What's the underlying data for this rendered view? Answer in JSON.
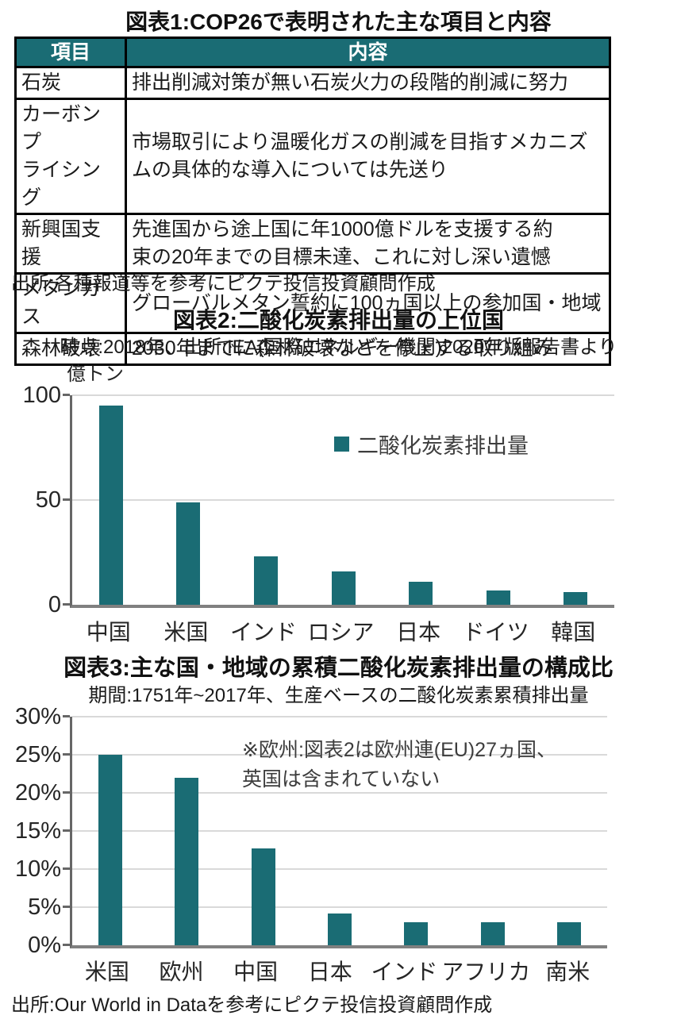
{
  "colors": {
    "teal": "#1a6c74",
    "grid": "#d9d9d9",
    "axis": "#808080",
    "y_axis": "#666666",
    "text": "#1a1a1a",
    "table_header_text": "#ffffff",
    "table_border": "#000000"
  },
  "fig1": {
    "title": "図表1:COP26で表明された主な項目と内容",
    "col_headers": {
      "item": "項目",
      "content": "内容"
    },
    "rows": [
      {
        "item": "石炭",
        "content": "排出削減対策が無い石炭火力の段階的削減に努力"
      },
      {
        "item": "カーボンプ\nライシング",
        "content": "市場取引により温暖化ガスの削減を目指すメカニズ\nムの具体的な導入については先送り"
      },
      {
        "item": "新興国支\n援",
        "content": "先進国から途上国に年1000億ドルを支援する約\n束の20年までの目標未達、これに対し深い遺憾"
      },
      {
        "item": "メタンガス",
        "content": "グローバルメタン誓約に100ヵ国以上の参加国・地域"
      },
      {
        "item": "森林破壊",
        "content": "2030年までに森林破壊などを停止する取り組み"
      }
    ],
    "source": "出所:各種報道等を参考にピクテ投信投資顧問作成"
  },
  "chart_data": [
    {
      "id": "fig2",
      "type": "bar",
      "title": "図表2:二酸化炭素排出量の上位国",
      "subtitle": "時点:2018年、出所:IEA(国際エネルギー機関)2020年版報告書より",
      "unit_label": "億トン",
      "legend": [
        "二酸化炭素排出量"
      ],
      "legend_position": "inside-upper-right",
      "categories": [
        "中国",
        "米国",
        "インド",
        "ロシア",
        "日本",
        "ドイツ",
        "韓国"
      ],
      "values": [
        95,
        49,
        23,
        16,
        11,
        7,
        6
      ],
      "ylim": [
        0,
        100
      ],
      "yticks": [
        0,
        50,
        100
      ],
      "ytick_suffix": "",
      "grid": true,
      "bar_color": "#1a6c74"
    },
    {
      "id": "fig3",
      "type": "bar",
      "title": "図表3:主な国・地域の累積二酸化炭素排出量の構成比",
      "subtitle": "期間:1751年~2017年、生産ベースの二酸化炭素累積排出量",
      "annotation": [
        "※欧州:図表2は欧州連(EU)27ヵ国、",
        "英国は含まれていない"
      ],
      "categories": [
        "米国",
        "欧州",
        "中国",
        "日本",
        "インド",
        "アフリカ",
        "南米"
      ],
      "values": [
        25,
        22,
        12.7,
        4.2,
        3,
        3,
        3
      ],
      "ylim": [
        0,
        30
      ],
      "yticks": [
        0,
        5,
        10,
        15,
        20,
        25,
        30
      ],
      "ytick_suffix": "%",
      "grid": true,
      "bar_color": "#1a6c74",
      "source": "出所:Our World in Dataを参考にピクテ投信投資顧問作成"
    }
  ]
}
